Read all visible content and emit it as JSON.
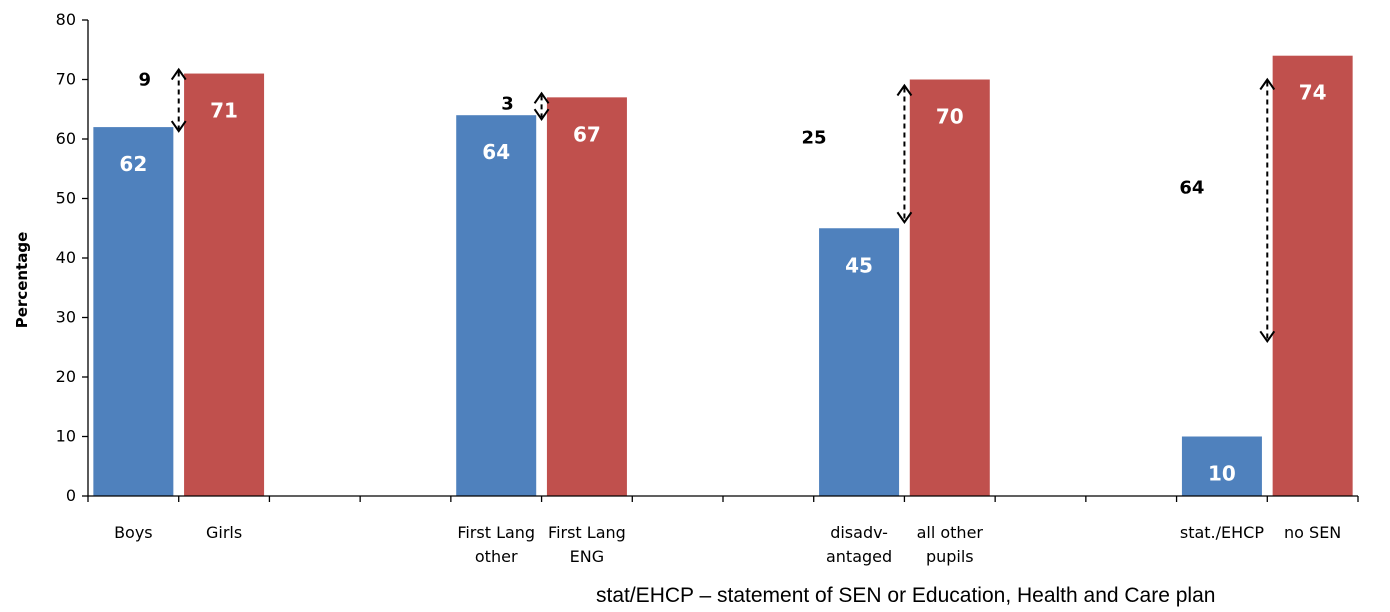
{
  "chart_data": {
    "type": "bar",
    "ylabel": "Percentage",
    "ylim": [
      0,
      80
    ],
    "yticks": [
      "0",
      "10",
      "20",
      "30",
      "40",
      "50",
      "60",
      "70",
      "80"
    ],
    "categories": [
      [
        "Boys"
      ],
      [
        "Girls"
      ],
      [],
      [],
      [
        "First Lang",
        "other"
      ],
      [
        "First Lang",
        "ENG"
      ],
      [],
      [],
      [
        "disadv-",
        "antaged"
      ],
      [
        "all other",
        "pupils"
      ],
      [],
      [],
      [
        "stat./EHCP"
      ],
      [
        "no SEN"
      ]
    ],
    "values": [
      62,
      71,
      null,
      null,
      64,
      67,
      null,
      null,
      45,
      70,
      null,
      null,
      10,
      74
    ],
    "colors": {
      "group": "#4f81bd",
      "comparison": "#c0504d"
    },
    "gaps": [
      {
        "label": "9",
        "from": 62,
        "to": 71,
        "lower_index": 0,
        "upper_index": 1
      },
      {
        "label": "3",
        "from": 64,
        "to": 67,
        "lower_index": 4,
        "upper_index": 5
      },
      {
        "label": "25",
        "from": 45,
        "to": 70,
        "lower_index": 8,
        "upper_index": 9
      },
      {
        "label": "64",
        "from": 10,
        "to": 74,
        "lower_index": 12,
        "upper_index": 13
      }
    ]
  },
  "footnote": "stat/EHCP – statement of SEN or Education, Health and Care plan"
}
